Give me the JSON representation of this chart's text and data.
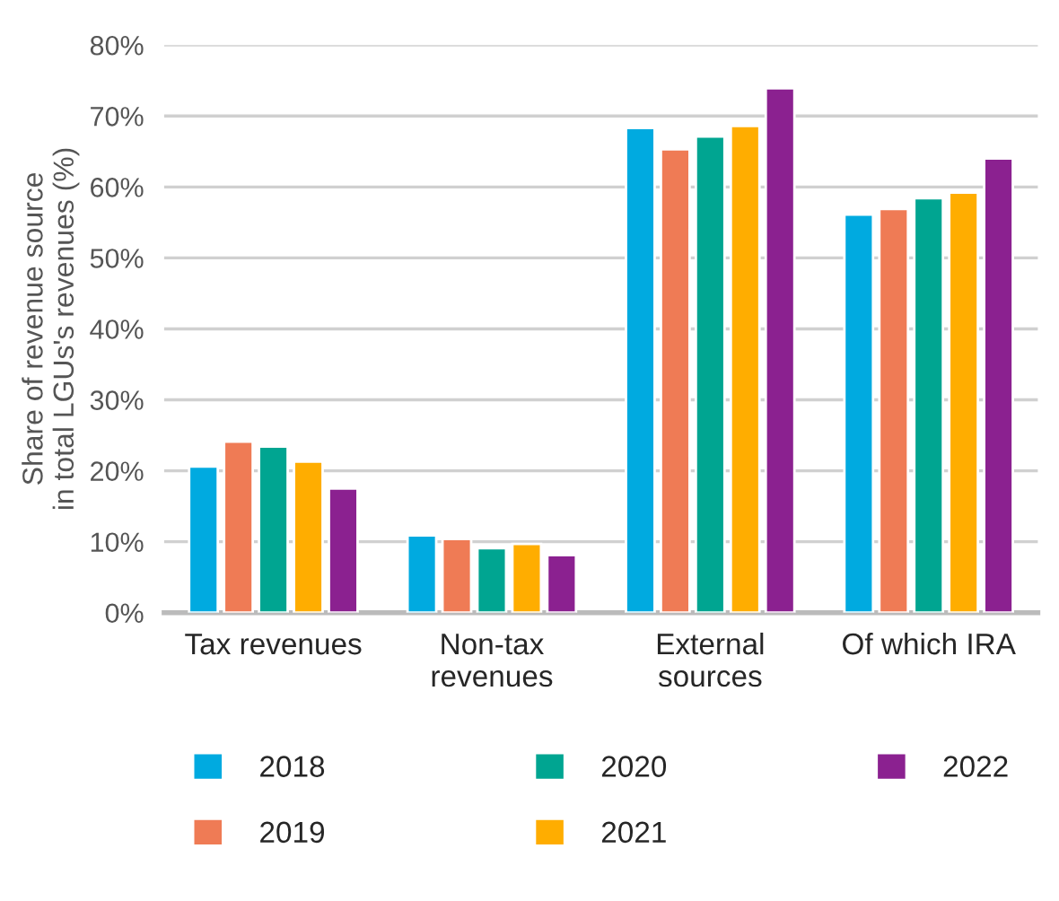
{
  "chart_data": {
    "type": "bar",
    "ylabel": "Share of revenue source\nin total LGUs's revenues (%)",
    "categories": [
      "Tax revenues",
      "Non-tax\nrevenues",
      "External\nsources",
      "Of which IRA"
    ],
    "series": [
      {
        "name": "2018",
        "color": "#00aae0",
        "values": [
          20.6,
          10.9,
          68.3,
          56.1
        ]
      },
      {
        "name": "2019",
        "color": "#ef7b55",
        "values": [
          24.1,
          10.4,
          65.3,
          56.9
        ]
      },
      {
        "name": "2020",
        "color": "#00a591",
        "values": [
          23.4,
          9.1,
          67.1,
          58.4
        ]
      },
      {
        "name": "2021",
        "color": "#ffad00",
        "values": [
          21.3,
          9.7,
          68.6,
          59.2
        ]
      },
      {
        "name": "2022",
        "color": "#8b2190",
        "values": [
          17.5,
          8.1,
          73.9,
          64.0
        ]
      }
    ],
    "ylim": [
      0,
      80
    ],
    "yticks": [
      {
        "value": 0,
        "label": "0%"
      },
      {
        "value": 10,
        "label": "10%"
      },
      {
        "value": 20,
        "label": "20%"
      },
      {
        "value": 30,
        "label": "30%"
      },
      {
        "value": 40,
        "label": "40%"
      },
      {
        "value": 50,
        "label": "50%"
      },
      {
        "value": 60,
        "label": "60%"
      },
      {
        "value": 70,
        "label": "70%"
      },
      {
        "value": 80,
        "label": "80%"
      }
    ],
    "grid": "y",
    "legend": "bottom"
  }
}
